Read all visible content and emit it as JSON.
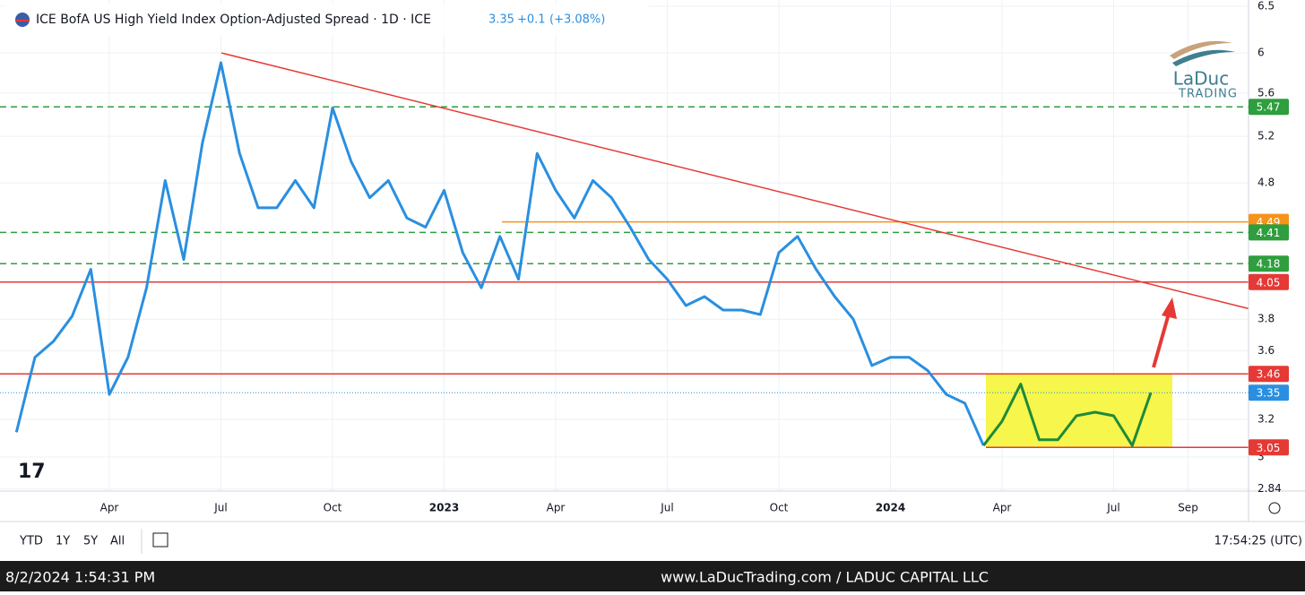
{
  "chart_data": {
    "type": "line",
    "title": "ICE BofA US High Yield Index Option-Adjusted Spread · 1D · ICE",
    "last": 3.35,
    "change": "+0.1",
    "change_pct": "(+3.08%)",
    "logo": [
      "LaDuc",
      "TRADING"
    ],
    "categories": [
      null,
      null,
      null,
      null,
      null,
      "Apr",
      null,
      null,
      null,
      null,
      null,
      "Jul",
      null,
      null,
      null,
      null,
      null,
      "Oct",
      null,
      null,
      null,
      null,
      null,
      "2023",
      null,
      null,
      null,
      null,
      null,
      "Apr",
      null,
      null,
      null,
      null,
      null,
      "Jul",
      null,
      null,
      null,
      null,
      null,
      "Oct",
      null,
      null,
      null,
      null,
      null,
      "2024",
      null,
      null,
      null,
      null,
      null,
      "Apr",
      null,
      null,
      null,
      null,
      null,
      "Jul",
      null,
      null,
      null,
      "Sep"
    ],
    "series": [
      {
        "color": "#2a8fe0",
        "values": [
          3.13,
          3.56,
          3.66,
          3.82,
          4.14,
          3.34,
          3.56,
          4.01,
          4.82,
          4.21,
          5.14,
          5.9,
          5.05,
          4.6,
          4.6,
          4.82,
          4.6,
          5.46,
          4.98,
          4.68,
          4.82,
          4.52,
          4.45,
          4.74,
          4.26,
          4.01,
          4.38,
          4.07,
          5.05,
          4.74,
          4.52,
          4.82,
          4.68,
          4.45,
          4.21,
          4.07,
          3.89,
          3.95,
          3.86,
          3.86,
          3.83,
          4.26,
          4.38,
          4.14,
          3.95,
          3.8,
          3.51,
          3.56,
          3.56,
          3.48,
          3.34,
          3.29,
          3.06,
          null,
          null,
          null,
          null,
          null,
          null,
          null,
          null,
          null,
          null,
          null
        ]
      },
      {
        "color": "#1e8a3a",
        "values": [
          null,
          null,
          null,
          null,
          null,
          null,
          null,
          null,
          null,
          null,
          null,
          null,
          null,
          null,
          null,
          null,
          null,
          null,
          null,
          null,
          null,
          null,
          null,
          null,
          null,
          null,
          null,
          null,
          null,
          null,
          null,
          null,
          null,
          null,
          null,
          null,
          null,
          null,
          null,
          null,
          null,
          null,
          null,
          null,
          null,
          null,
          null,
          null,
          null,
          null,
          null,
          null,
          3.06,
          3.19,
          3.4,
          3.09,
          3.09,
          3.22,
          3.24,
          3.22,
          3.06,
          3.35,
          null,
          null
        ]
      }
    ],
    "log_scale": true,
    "ylim": [
      2.83,
      6.57
    ],
    "yticks": [
      6.5,
      6,
      5.6,
      5.2,
      4.8,
      3.8,
      3.6,
      3.2,
      3,
      2.84
    ],
    "grid": true,
    "levels": [
      {
        "value": 5.47,
        "color": "#2e9e3e",
        "style": "dashed"
      },
      {
        "value": 4.49,
        "color": "#f7931a",
        "style": "solid"
      },
      {
        "value": 4.41,
        "color": "#2e9e3e",
        "style": "dashed"
      },
      {
        "value": 4.18,
        "color": "#2e9e3e",
        "style": "dashed"
      },
      {
        "value": 4.05,
        "color": "#e53935",
        "style": "solid"
      },
      {
        "value": 3.46,
        "color": "#e53935",
        "style": "solid"
      },
      {
        "value": 3.05,
        "color": "#e53935",
        "style": "solid"
      }
    ],
    "trendline": [
      6.0,
      3.87
    ],
    "ranges": [
      "YTD",
      "1Y",
      "5Y",
      "All"
    ],
    "clock": "17:54:25 (UTC)",
    "footer_left": "8/2/2024 1:54:31 PM",
    "footer_right": "www.LaDucTrading.com / LADUC CAPITAL LLC"
  }
}
